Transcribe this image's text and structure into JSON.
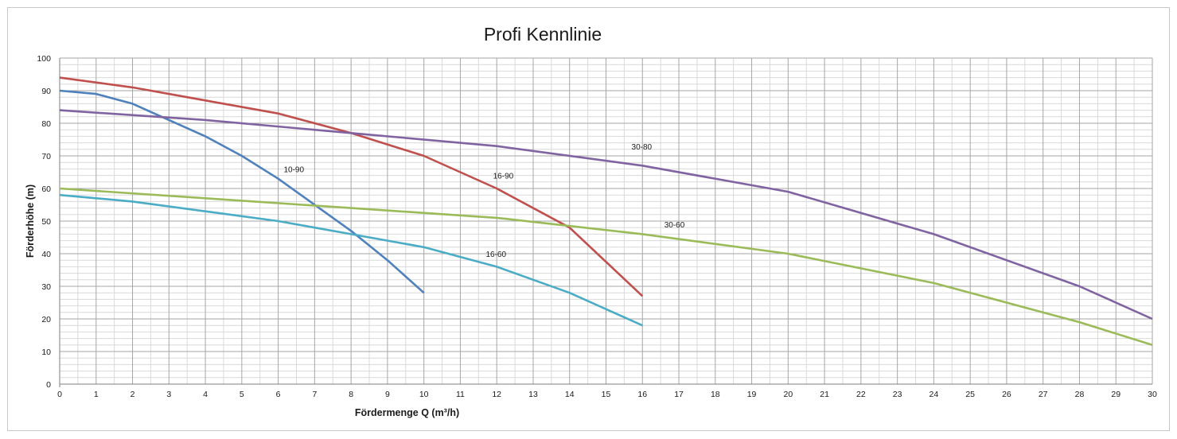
{
  "chart_data": {
    "type": "line",
    "title": "Profi Kennlinie",
    "xlabel": "Fördermenge Q (m³/h)",
    "ylabel": "Förderhöhe (m)",
    "xlim": [
      0,
      30
    ],
    "ylim": [
      0,
      100
    ],
    "x_ticks": [
      0,
      1,
      2,
      3,
      4,
      5,
      6,
      7,
      8,
      9,
      10,
      11,
      12,
      13,
      14,
      15,
      16,
      17,
      18,
      19,
      20,
      21,
      22,
      23,
      24,
      25,
      26,
      27,
      28,
      29,
      30
    ],
    "y_ticks": [
      0,
      10,
      20,
      30,
      40,
      50,
      60,
      70,
      80,
      90,
      100
    ],
    "grid": true,
    "legend": "none",
    "series": [
      {
        "name": "10-90",
        "color": "#4f81bd",
        "points": [
          [
            0,
            90
          ],
          [
            1,
            89
          ],
          [
            2,
            86
          ],
          [
            4,
            76
          ],
          [
            5,
            70
          ],
          [
            6,
            63
          ],
          [
            8,
            47
          ],
          [
            9,
            38
          ],
          [
            10,
            28
          ]
        ]
      },
      {
        "name": "16-90",
        "color": "#c0504d",
        "points": [
          [
            0,
            94
          ],
          [
            2,
            91
          ],
          [
            4,
            87
          ],
          [
            6,
            83
          ],
          [
            8,
            77
          ],
          [
            10,
            70
          ],
          [
            12,
            60
          ],
          [
            14,
            48
          ],
          [
            16,
            27
          ]
        ]
      },
      {
        "name": "30-80",
        "color": "#8064a2",
        "points": [
          [
            0,
            84
          ],
          [
            4,
            81
          ],
          [
            8,
            77
          ],
          [
            12,
            73
          ],
          [
            16,
            67
          ],
          [
            20,
            59
          ],
          [
            24,
            46
          ],
          [
            28,
            30
          ],
          [
            30,
            20
          ]
        ]
      },
      {
        "name": "30-60",
        "color": "#9bbb59",
        "points": [
          [
            0,
            60
          ],
          [
            4,
            57
          ],
          [
            8,
            54
          ],
          [
            12,
            51
          ],
          [
            16,
            46
          ],
          [
            20,
            40
          ],
          [
            24,
            31
          ],
          [
            28,
            19
          ],
          [
            30,
            12
          ]
        ]
      },
      {
        "name": "16-60",
        "color": "#4bacc6",
        "points": [
          [
            0,
            58
          ],
          [
            2,
            56
          ],
          [
            4,
            53
          ],
          [
            6,
            50
          ],
          [
            8,
            46
          ],
          [
            10,
            42
          ],
          [
            12,
            36
          ],
          [
            14,
            28
          ],
          [
            16,
            18
          ]
        ]
      }
    ],
    "series_label_anchors": [
      {
        "text": "10-90",
        "x": 6.15,
        "y": 65
      },
      {
        "text": "16-90",
        "x": 11.9,
        "y": 63
      },
      {
        "text": "30-80",
        "x": 15.7,
        "y": 72
      },
      {
        "text": "30-60",
        "x": 16.6,
        "y": 48
      },
      {
        "text": "16-60",
        "x": 11.7,
        "y": 39
      }
    ]
  }
}
